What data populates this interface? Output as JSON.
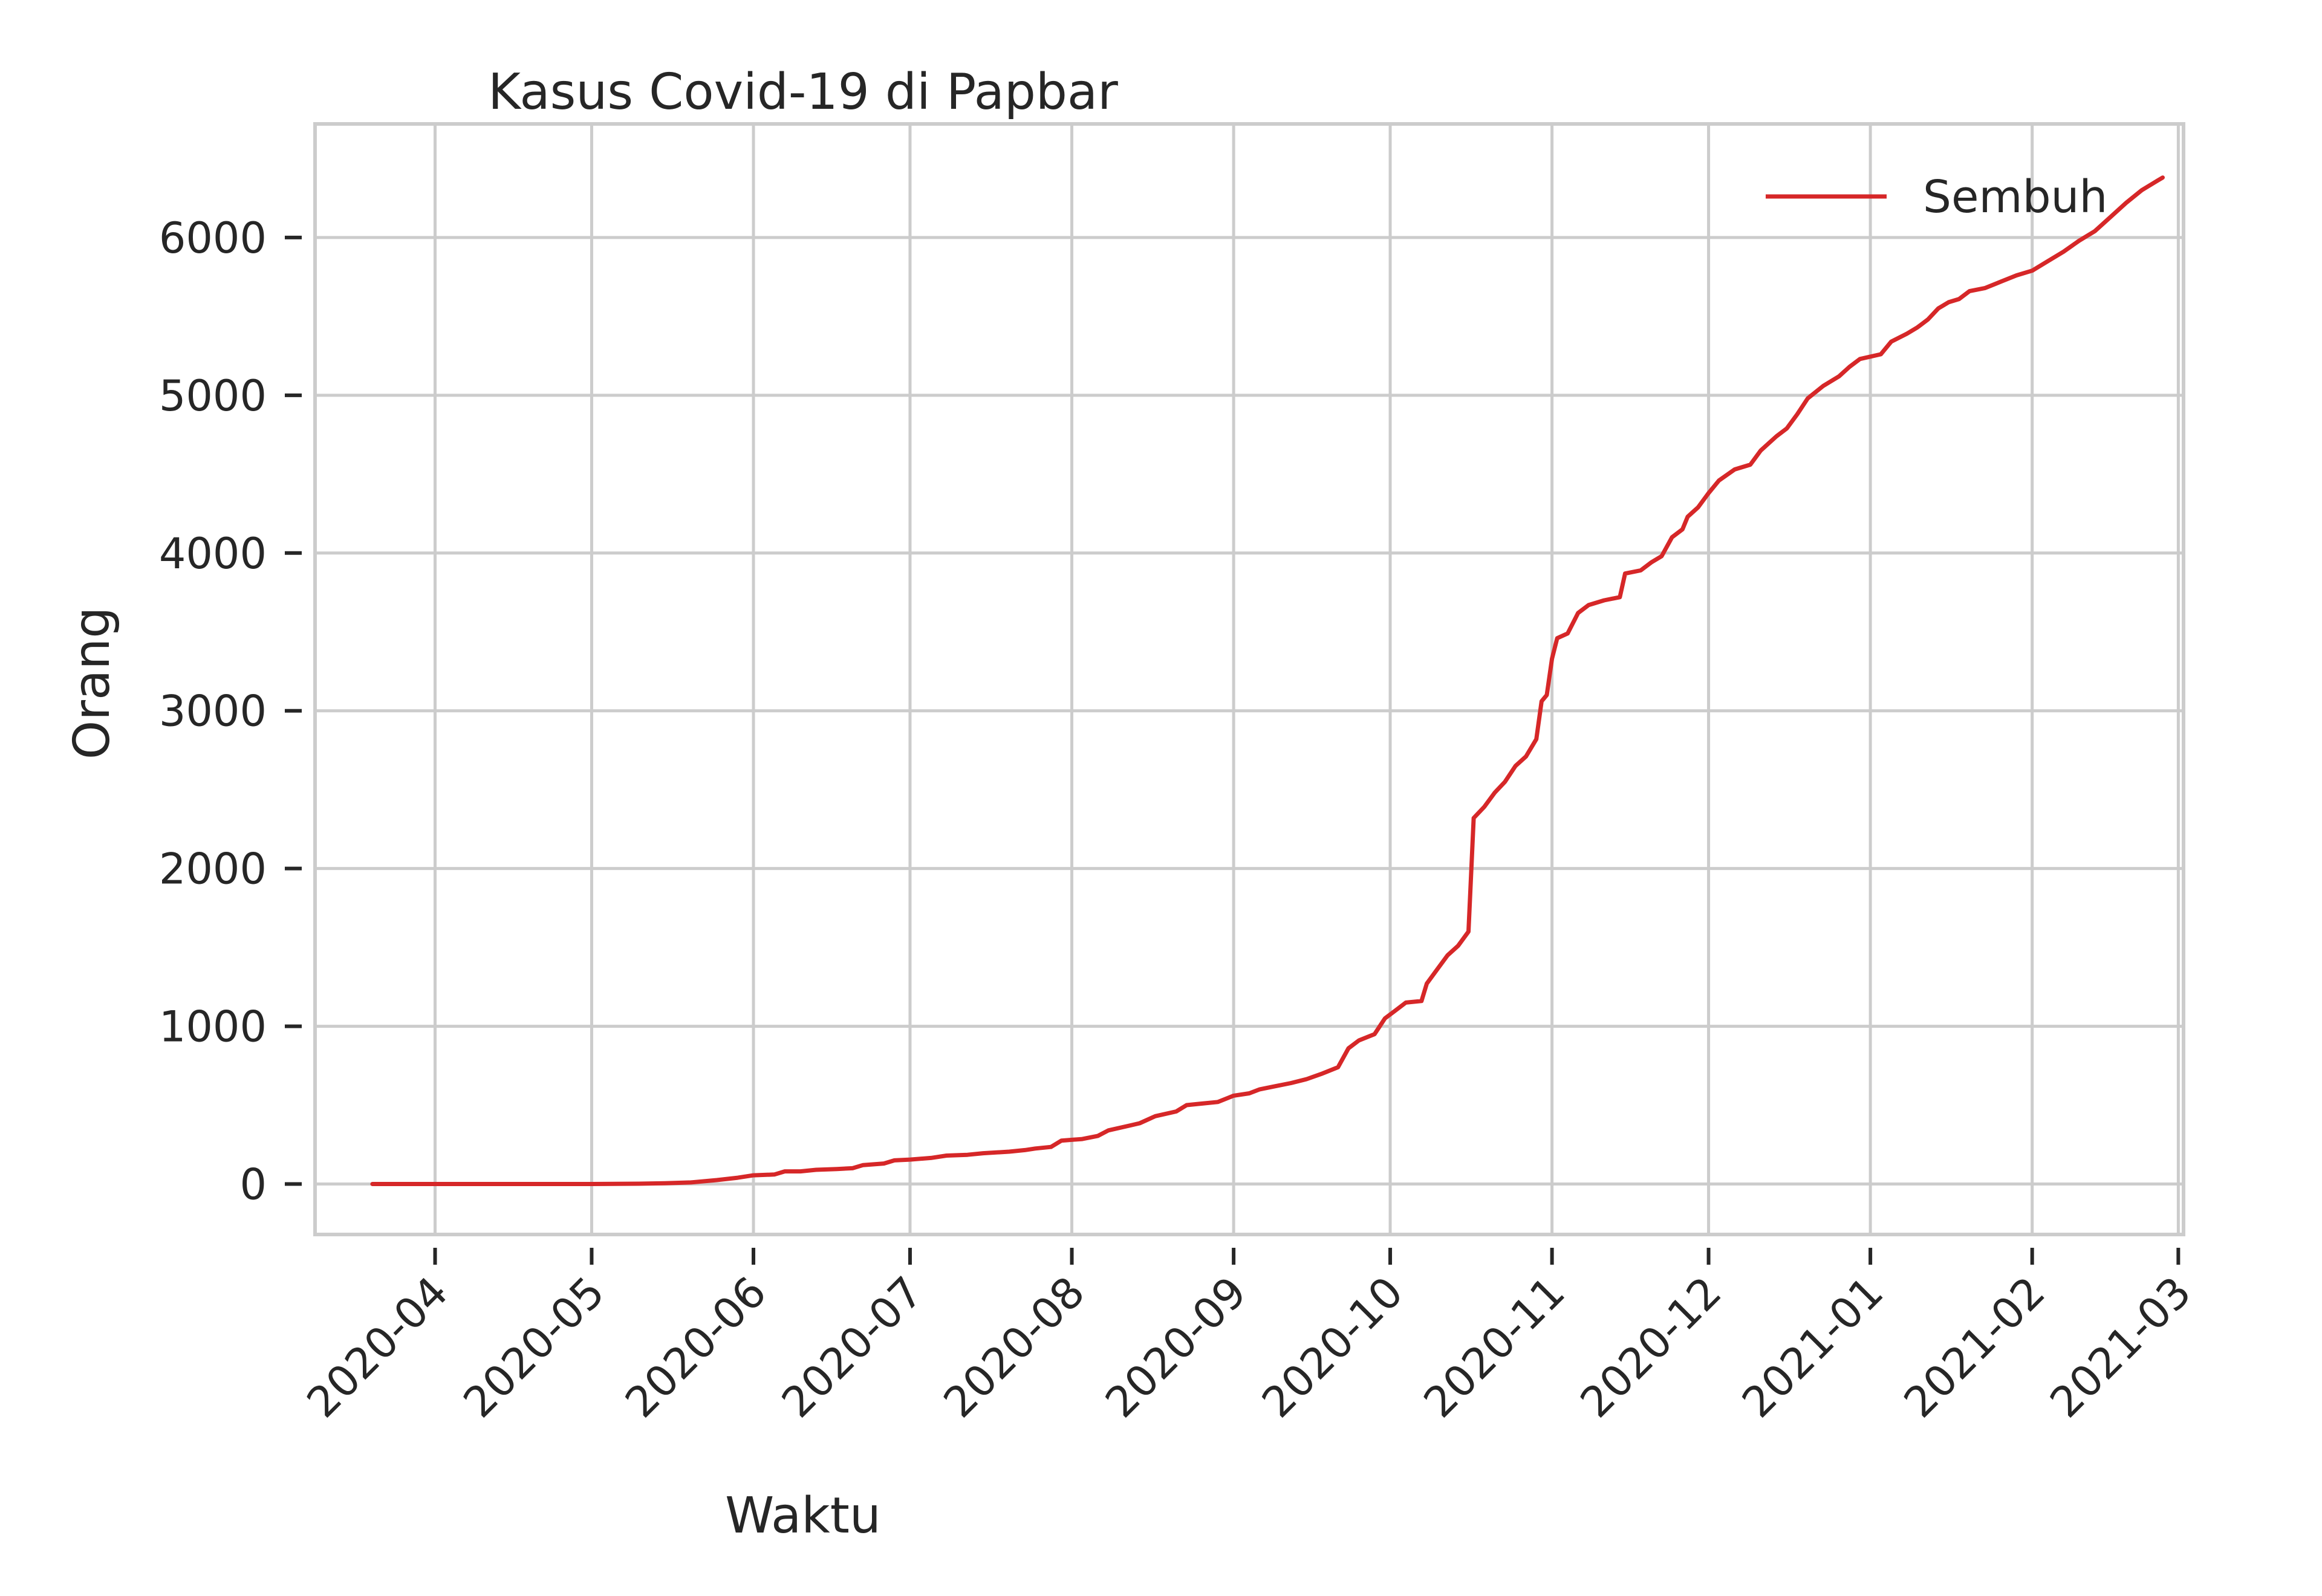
{
  "chart_data": {
    "type": "line",
    "title": "Kasus Covid-19 di Papbar",
    "xlabel": "Waktu",
    "ylabel": "Orang",
    "x_type": "date",
    "xlim": [
      "2020-03-09",
      "2021-03-02"
    ],
    "ylim": [
      -320,
      6720
    ],
    "x_ticks": [
      "2020-04",
      "2020-05",
      "2020-06",
      "2020-07",
      "2020-08",
      "2020-09",
      "2020-10",
      "2020-11",
      "2020-12",
      "2021-01",
      "2021-02",
      "2021-03"
    ],
    "y_ticks": [
      0,
      1000,
      2000,
      3000,
      4000,
      5000,
      6000
    ],
    "grid": true,
    "legend": {
      "position": "top-right",
      "entries": [
        "Sembuh"
      ]
    },
    "series": [
      {
        "name": "Sembuh",
        "color": "#d62728",
        "points": [
          [
            "2020-03-20",
            0
          ],
          [
            "2020-04-01",
            0
          ],
          [
            "2020-04-15",
            0
          ],
          [
            "2020-05-01",
            0
          ],
          [
            "2020-05-10",
            2
          ],
          [
            "2020-05-15",
            5
          ],
          [
            "2020-05-20",
            10
          ],
          [
            "2020-05-25",
            25
          ],
          [
            "2020-05-29",
            40
          ],
          [
            "2020-06-01",
            55
          ],
          [
            "2020-06-05",
            60
          ],
          [
            "2020-06-07",
            80
          ],
          [
            "2020-06-10",
            80
          ],
          [
            "2020-06-13",
            90
          ],
          [
            "2020-06-17",
            95
          ],
          [
            "2020-06-20",
            100
          ],
          [
            "2020-06-22",
            120
          ],
          [
            "2020-06-26",
            130
          ],
          [
            "2020-06-28",
            150
          ],
          [
            "2020-07-01",
            155
          ],
          [
            "2020-07-05",
            165
          ],
          [
            "2020-07-08",
            180
          ],
          [
            "2020-07-12",
            185
          ],
          [
            "2020-07-15",
            195
          ],
          [
            "2020-07-20",
            205
          ],
          [
            "2020-07-23",
            215
          ],
          [
            "2020-07-25",
            225
          ],
          [
            "2020-07-28",
            235
          ],
          [
            "2020-07-30",
            275
          ],
          [
            "2020-08-03",
            285
          ],
          [
            "2020-08-06",
            305
          ],
          [
            "2020-08-08",
            340
          ],
          [
            "2020-08-12",
            370
          ],
          [
            "2020-08-14",
            385
          ],
          [
            "2020-08-17",
            430
          ],
          [
            "2020-08-21",
            460
          ],
          [
            "2020-08-23",
            500
          ],
          [
            "2020-08-26",
            510
          ],
          [
            "2020-08-29",
            520
          ],
          [
            "2020-09-01",
            560
          ],
          [
            "2020-09-04",
            575
          ],
          [
            "2020-09-06",
            600
          ],
          [
            "2020-09-09",
            620
          ],
          [
            "2020-09-12",
            640
          ],
          [
            "2020-09-15",
            665
          ],
          [
            "2020-09-18",
            700
          ],
          [
            "2020-09-21",
            740
          ],
          [
            "2020-09-23",
            860
          ],
          [
            "2020-09-25",
            910
          ],
          [
            "2020-09-28",
            950
          ],
          [
            "2020-09-30",
            1050
          ],
          [
            "2020-10-02",
            1100
          ],
          [
            "2020-10-04",
            1150
          ],
          [
            "2020-10-07",
            1160
          ],
          [
            "2020-10-08",
            1270
          ],
          [
            "2020-10-10",
            1360
          ],
          [
            "2020-10-12",
            1450
          ],
          [
            "2020-10-14",
            1510
          ],
          [
            "2020-10-16",
            1600
          ],
          [
            "2020-10-17",
            2320
          ],
          [
            "2020-10-19",
            2390
          ],
          [
            "2020-10-21",
            2480
          ],
          [
            "2020-10-23",
            2550
          ],
          [
            "2020-10-25",
            2650
          ],
          [
            "2020-10-27",
            2710
          ],
          [
            "2020-10-29",
            2820
          ],
          [
            "2020-10-30",
            3060
          ],
          [
            "2020-10-31",
            3100
          ],
          [
            "2020-11-01",
            3330
          ],
          [
            "2020-11-02",
            3460
          ],
          [
            "2020-11-04",
            3490
          ],
          [
            "2020-11-06",
            3620
          ],
          [
            "2020-11-08",
            3670
          ],
          [
            "2020-11-11",
            3700
          ],
          [
            "2020-11-14",
            3720
          ],
          [
            "2020-11-15",
            3870
          ],
          [
            "2020-11-18",
            3890
          ],
          [
            "2020-11-20",
            3940
          ],
          [
            "2020-11-22",
            3980
          ],
          [
            "2020-11-24",
            4100
          ],
          [
            "2020-11-26",
            4150
          ],
          [
            "2020-11-27",
            4230
          ],
          [
            "2020-11-29",
            4290
          ],
          [
            "2020-12-01",
            4380
          ],
          [
            "2020-12-03",
            4460
          ],
          [
            "2020-12-06",
            4530
          ],
          [
            "2020-12-09",
            4560
          ],
          [
            "2020-12-11",
            4650
          ],
          [
            "2020-12-14",
            4740
          ],
          [
            "2020-12-16",
            4790
          ],
          [
            "2020-12-18",
            4880
          ],
          [
            "2020-12-20",
            4980
          ],
          [
            "2020-12-23",
            5060
          ],
          [
            "2020-12-26",
            5120
          ],
          [
            "2020-12-28",
            5180
          ],
          [
            "2020-12-30",
            5230
          ],
          [
            "2021-01-03",
            5260
          ],
          [
            "2021-01-05",
            5340
          ],
          [
            "2021-01-08",
            5390
          ],
          [
            "2021-01-10",
            5430
          ],
          [
            "2021-01-12",
            5480
          ],
          [
            "2021-01-14",
            5550
          ],
          [
            "2021-01-16",
            5590
          ],
          [
            "2021-01-18",
            5610
          ],
          [
            "2021-01-20",
            5660
          ],
          [
            "2021-01-23",
            5680
          ],
          [
            "2021-01-26",
            5720
          ],
          [
            "2021-01-29",
            5760
          ],
          [
            "2021-02-01",
            5790
          ],
          [
            "2021-02-04",
            5850
          ],
          [
            "2021-02-07",
            5910
          ],
          [
            "2021-02-10",
            5980
          ],
          [
            "2021-02-13",
            6040
          ],
          [
            "2021-02-16",
            6130
          ],
          [
            "2021-02-19",
            6220
          ],
          [
            "2021-02-22",
            6300
          ],
          [
            "2021-02-25",
            6360
          ],
          [
            "2021-02-26",
            6380
          ]
        ]
      }
    ]
  }
}
